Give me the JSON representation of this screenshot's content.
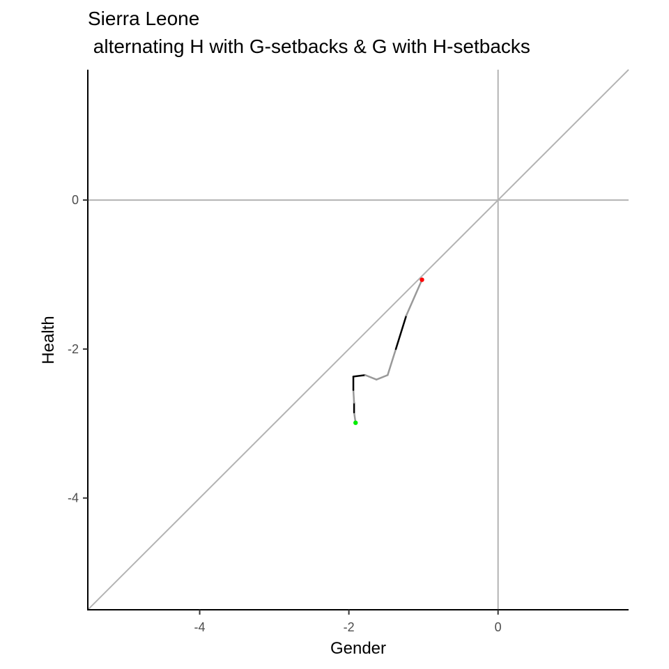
{
  "chart_data": {
    "type": "line",
    "title_lines": [
      "Sierra Leone",
      " alternating H with G-setbacks & G with H-setbacks"
    ],
    "xlabel": "Gender",
    "ylabel": "Health",
    "xlim": [
      -5.5,
      1.75
    ],
    "ylim": [
      -5.5,
      1.75
    ],
    "x_ticks": [
      -4,
      -2,
      0
    ],
    "y_ticks": [
      0,
      -2,
      -4
    ],
    "grid": false,
    "reference_lines": [
      {
        "type": "hline",
        "y": 0,
        "color": "#b3b3b3"
      },
      {
        "type": "vline",
        "x": 0,
        "color": "#b3b3b3"
      },
      {
        "type": "diagonal",
        "slope": 1,
        "intercept": 0,
        "color": "#b3b3b3"
      }
    ],
    "path": {
      "x": [
        -1.91,
        -1.93,
        -1.93,
        -1.94,
        -1.94,
        -1.78,
        -1.63,
        -1.48,
        -1.37,
        -1.23,
        -1.02
      ],
      "y": [
        -2.99,
        -2.85,
        -2.72,
        -2.55,
        -2.37,
        -2.35,
        -2.41,
        -2.35,
        -2.0,
        -1.55,
        -1.07
      ],
      "segment_colors": [
        "#999999",
        "#000000",
        "#999999",
        "#000000",
        "#000000",
        "#999999",
        "#999999",
        "#999999",
        "#000000",
        "#999999"
      ]
    },
    "start_point": {
      "x": -1.91,
      "y": -2.99,
      "color": "#00ee00"
    },
    "end_point": {
      "x": -1.02,
      "y": -1.07,
      "color": "#ff0000"
    }
  }
}
